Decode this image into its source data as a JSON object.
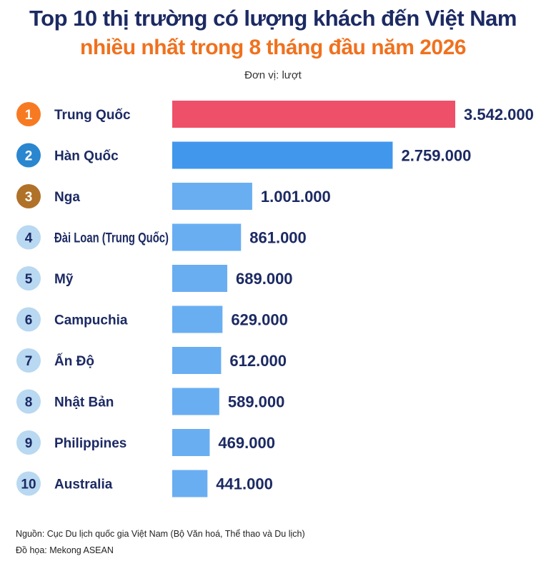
{
  "title_line1": "Top 10 thị trường có lượng khách đến Việt Nam",
  "title_line2": "nhiều nhất trong 8 tháng đầu năm 2026",
  "unit": "Đơn vị: lượt",
  "footer_source": "Nguồn: Cục Du lịch quốc gia Việt Nam (Bộ Văn hoá, Thể thao và Du lịch)",
  "footer_graphic": "Đồ họa: Mekong ASEAN",
  "colors": {
    "title_dark": "#1c2a63",
    "title_orange": "#f0711e",
    "bar_top1": "#ef5069",
    "bar_top2": "#4197ec",
    "bar_default": "#6aaef2",
    "badge_1": "#f77a22",
    "badge_2": "#2a86cf",
    "badge_3": "#b07128",
    "badge_default": "#b9d8f1"
  },
  "chart_data": {
    "type": "bar",
    "orientation": "horizontal",
    "ranks": [
      "1",
      "2",
      "3",
      "4",
      "5",
      "6",
      "7",
      "8",
      "9",
      "10"
    ],
    "categories": [
      "Trung Quốc",
      "Hàn Quốc",
      "Nga",
      "Đài Loan (Trung Quốc)",
      "Mỹ",
      "Campuchia",
      "Ấn Độ",
      "Nhật Bản",
      "Philippines",
      "Australia"
    ],
    "values": [
      3542000,
      2759000,
      1001000,
      861000,
      689000,
      629000,
      612000,
      589000,
      469000,
      441000
    ],
    "value_labels": [
      "3.542.000",
      "2.759.000",
      "1.001.000",
      "861.000",
      "689.000",
      "629.000",
      "612.000",
      "589.000",
      "469.000",
      "441.000"
    ],
    "xlim": [
      0,
      3542000
    ],
    "grid": false,
    "legend": "none"
  }
}
